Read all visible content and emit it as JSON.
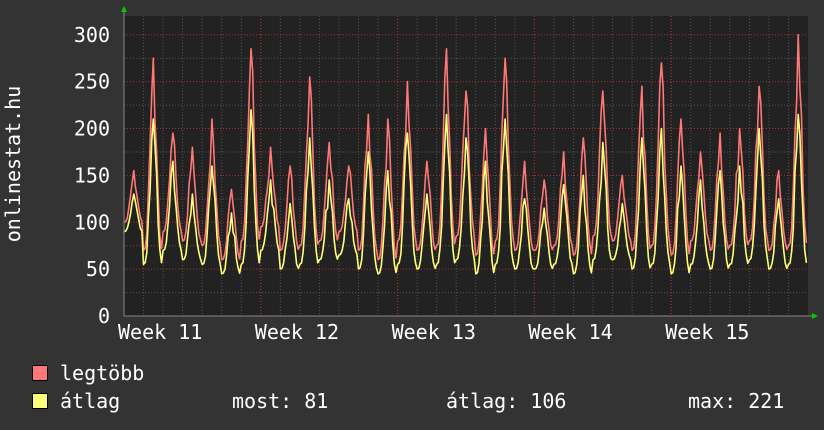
{
  "colors": {
    "background": "#333333",
    "plot_background": "#222222",
    "grid": "#555555",
    "grid_major": "#aa3333",
    "axis": "#888888",
    "arrow": "#00cc00",
    "series_max": "#ff7777",
    "series_avg": "#ffff77"
  },
  "chart_data": {
    "type": "line",
    "ylabel": "onlinestat.hu",
    "ylim": [
      0,
      320
    ],
    "yticks": [
      0,
      50,
      100,
      150,
      200,
      250,
      300
    ],
    "x_tick_labels": [
      "Week 11",
      "Week 12",
      "Week 13",
      "Week 14",
      "Week 15"
    ],
    "grid": true,
    "x_unit": "days",
    "x_range": [
      0,
      35
    ],
    "series": [
      {
        "name": "legtöbb",
        "color": "#ff7777",
        "peaks": [
          155,
          275,
          195,
          180,
          210,
          135,
          285,
          180,
          160,
          255,
          185,
          160,
          215,
          210,
          250,
          165,
          285,
          240,
          200,
          275,
          165,
          145,
          175,
          190,
          240,
          150,
          245,
          270,
          210,
          175,
          195,
          200,
          245,
          155,
          300
        ],
        "troughs": [
          100,
          70,
          90,
          80,
          75,
          60,
          80,
          95,
          70,
          75,
          80,
          90,
          70,
          60,
          80,
          70,
          75,
          85,
          65,
          80,
          70,
          70,
          75,
          65,
          85,
          80,
          70,
          75,
          65,
          80,
          70,
          75,
          80,
          70,
          75
        ]
      },
      {
        "name": "átlag",
        "color": "#ffff77",
        "peaks": [
          130,
          210,
          165,
          130,
          160,
          110,
          220,
          145,
          120,
          190,
          145,
          125,
          175,
          155,
          195,
          130,
          215,
          190,
          165,
          210,
          125,
          115,
          140,
          150,
          185,
          120,
          190,
          200,
          160,
          145,
          155,
          160,
          200,
          125,
          215
        ],
        "troughs": [
          90,
          55,
          70,
          60,
          55,
          45,
          55,
          70,
          50,
          55,
          60,
          65,
          50,
          45,
          55,
          50,
          55,
          60,
          45,
          55,
          50,
          50,
          55,
          45,
          60,
          60,
          50,
          55,
          45,
          55,
          50,
          55,
          60,
          50,
          55
        ]
      }
    ]
  },
  "legend": {
    "max_label": "legtöbb",
    "avg_label": "átlag",
    "now_text": "most: 81",
    "avg_text": "átlag: 106",
    "max_text": "max: 221"
  }
}
